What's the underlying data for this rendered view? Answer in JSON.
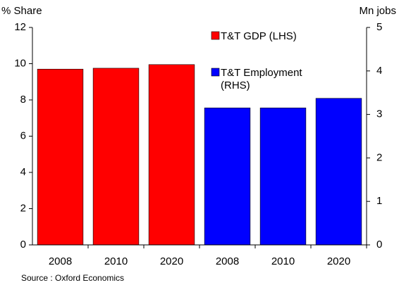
{
  "chart_data": {
    "type": "bar",
    "y_label": "% Share",
    "y2_label": "Mn jobs",
    "source": "Source : Oxford Economics",
    "categories": [
      "2008",
      "2010",
      "2020",
      "2008",
      "2010",
      "2020"
    ],
    "series": [
      {
        "name": "T&T GDP (LHS)",
        "color": "#ff0000",
        "values": [
          9.7,
          9.75,
          9.95,
          null,
          null,
          null
        ]
      },
      {
        "name": "T&T Employment (RHS)",
        "color": "#0000ff",
        "axis": "y2",
        "values": [
          null,
          null,
          null,
          3.15,
          3.15,
          3.37
        ]
      }
    ],
    "ylim": [
      0,
      12
    ],
    "yticks": [
      0,
      2,
      4,
      6,
      8,
      10,
      12
    ],
    "y2lim": [
      0,
      5
    ],
    "y2ticks": [
      0,
      1,
      2,
      3,
      4,
      5
    ],
    "grid": false
  }
}
